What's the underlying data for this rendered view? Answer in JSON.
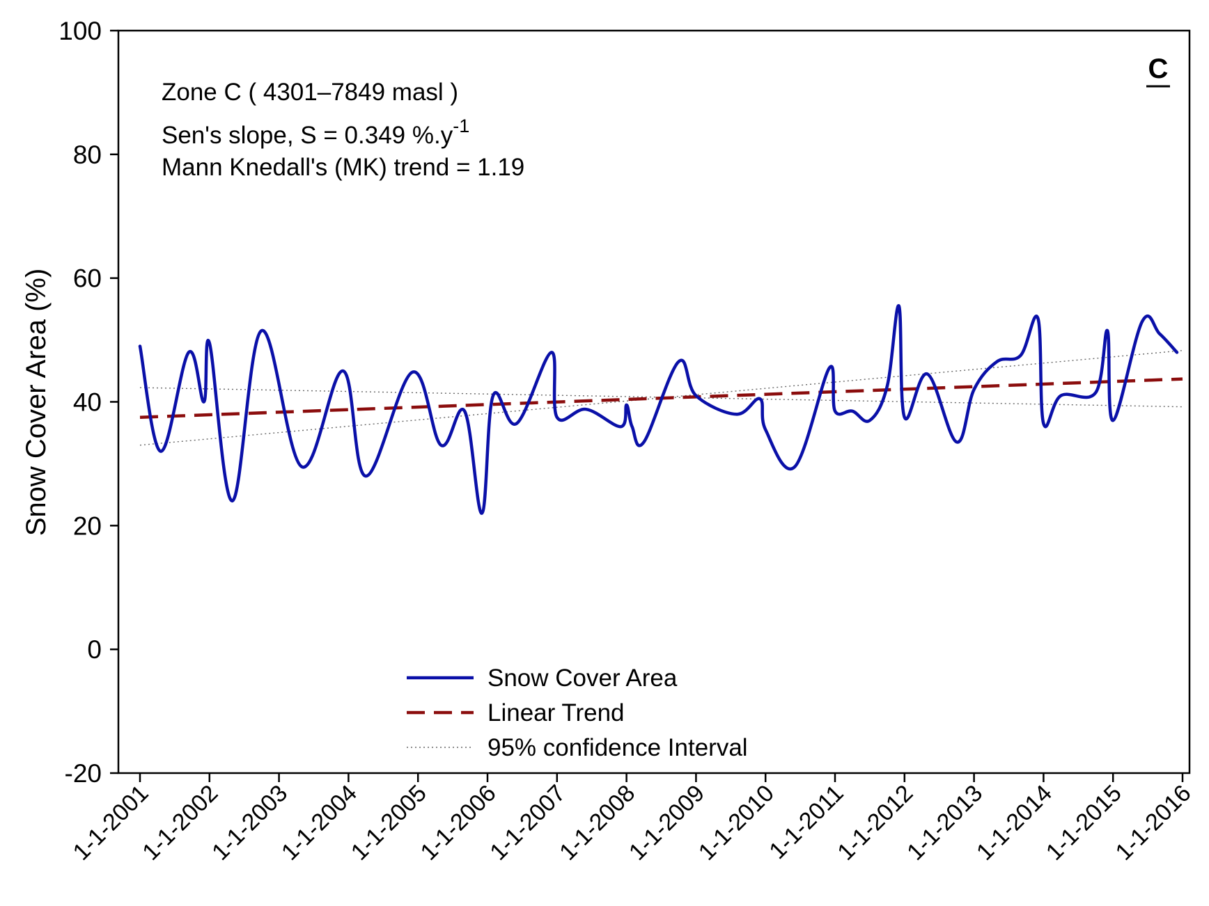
{
  "chart_data": {
    "type": "line",
    "panel_label": "C",
    "annotations": {
      "zone": "Zone C ( 4301–7849 masl )",
      "sens_slope_prefix": "Sen's slope, S = 0.349 %.y",
      "sens_slope_exponent": "-1",
      "mk_trend": "Mann Knedall's (MK) trend = 1.19"
    },
    "ylabel": "Snow Cover Area (%)",
    "xlabel": "",
    "ylim": [
      -20,
      100
    ],
    "yticks": [
      -20,
      0,
      20,
      40,
      60,
      80,
      100
    ],
    "xlim": [
      2001,
      2016
    ],
    "xticks": [
      {
        "label": "1-1-2001",
        "value": 2001
      },
      {
        "label": "1-1-2002",
        "value": 2002
      },
      {
        "label": "1-1-2003",
        "value": 2003
      },
      {
        "label": "1-1-2004",
        "value": 2004
      },
      {
        "label": "1-1-2005",
        "value": 2005
      },
      {
        "label": "1-1-2006",
        "value": 2006
      },
      {
        "label": "1-1-2007",
        "value": 2007
      },
      {
        "label": "1-1-2008",
        "value": 2008
      },
      {
        "label": "1-1-2009",
        "value": 2009
      },
      {
        "label": "1-1-2010",
        "value": 2010
      },
      {
        "label": "1-1-2011",
        "value": 2011
      },
      {
        "label": "1-1-2012",
        "value": 2012
      },
      {
        "label": "1-1-2013",
        "value": 2013
      },
      {
        "label": "1-1-2014",
        "value": 2014
      },
      {
        "label": "1-1-2015",
        "value": 2015
      },
      {
        "label": "1-1-2016",
        "value": 2016
      }
    ],
    "series": [
      {
        "name": "Snow Cover Area",
        "color": "#0a10a8",
        "style": "solid",
        "x": [
          2001.0,
          2001.3,
          2001.7,
          2001.92,
          2002.0,
          2002.33,
          2002.75,
          2003.33,
          2003.92,
          2004.25,
          2004.92,
          2005.33,
          2005.67,
          2005.92,
          2006.08,
          2006.42,
          2006.92,
          2007.0,
          2007.42,
          2007.92,
          2008.0,
          2008.08,
          2008.25,
          2008.75,
          2009.0,
          2009.58,
          2009.92,
          2010.0,
          2010.42,
          2010.92,
          2011.0,
          2011.25,
          2011.5,
          2011.75,
          2011.92,
          2012.0,
          2012.33,
          2012.75,
          2013.0,
          2013.33,
          2013.67,
          2013.92,
          2014.0,
          2014.25,
          2014.75,
          2014.92,
          2015.0,
          2015.42,
          2015.67,
          2015.92
        ],
        "values": [
          49.0,
          32.0,
          48.0,
          40.0,
          49.5,
          24.0,
          51.5,
          29.5,
          45.0,
          28.0,
          44.8,
          33.0,
          38.5,
          22.0,
          41.0,
          36.5,
          48.0,
          37.5,
          38.8,
          36.0,
          39.5,
          36.0,
          33.5,
          46.5,
          41.0,
          38.0,
          40.5,
          35.5,
          29.5,
          45.5,
          38.5,
          38.5,
          37.0,
          42.5,
          55.5,
          37.5,
          44.5,
          33.5,
          42.0,
          46.5,
          47.5,
          53.5,
          36.5,
          41.0,
          41.5,
          51.5,
          37.0,
          53.0,
          51.0,
          48.0
        ]
      },
      {
        "name": "Linear Trend",
        "color": "#8b0d0d",
        "style": "dashed",
        "x": [
          2001.0,
          2016.0
        ],
        "values": [
          37.5,
          43.7
        ]
      },
      {
        "name": "95% confidence Interval",
        "color": "#666666",
        "style": "dotted",
        "x": [
          2001.0,
          2016.0
        ],
        "values": [
          33.0,
          48.3
        ]
      },
      {
        "name": "95% confidence Interval (upper/lower)",
        "color": "#666666",
        "style": "dotted",
        "legend": false,
        "x": [
          2001.0,
          2016.0
        ],
        "values": [
          42.3,
          39.2
        ]
      }
    ],
    "legend": {
      "placement": "bottom-center",
      "entries": [
        "Snow Cover Area",
        "Linear Trend",
        "95% confidence Interval"
      ]
    }
  }
}
